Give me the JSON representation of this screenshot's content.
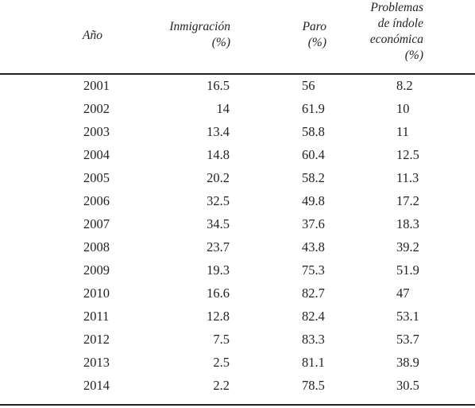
{
  "table": {
    "headers": {
      "year": "Año",
      "inmigracion": [
        "Inmigración",
        "(%)"
      ],
      "paro": [
        "Paro",
        "(%)"
      ],
      "problemas": [
        "Problemas",
        "de índole",
        "económica",
        "(%)"
      ]
    },
    "rows": [
      {
        "year": "2001",
        "inmigracion": "16.5",
        "paro": "56",
        "problemas": "8.2"
      },
      {
        "year": "2002",
        "inmigracion": "14",
        "paro": "61.9",
        "problemas": "10"
      },
      {
        "year": "2003",
        "inmigracion": "13.4",
        "paro": "58.8",
        "problemas": "11"
      },
      {
        "year": "2004",
        "inmigracion": "14.8",
        "paro": "60.4",
        "problemas": "12.5"
      },
      {
        "year": "2005",
        "inmigracion": "20.2",
        "paro": "58.2",
        "problemas": "11.3"
      },
      {
        "year": "2006",
        "inmigracion": "32.5",
        "paro": "49.8",
        "problemas": "17.2"
      },
      {
        "year": "2007",
        "inmigracion": "34.5",
        "paro": "37.6",
        "problemas": "18.3"
      },
      {
        "year": "2008",
        "inmigracion": "23.7",
        "paro": "43.8",
        "problemas": "39.2"
      },
      {
        "year": "2009",
        "inmigracion": "19.3",
        "paro": "75.3",
        "problemas": "51.9"
      },
      {
        "year": "2010",
        "inmigracion": "16.6",
        "paro": "82.7",
        "problemas": "47"
      },
      {
        "year": "2011",
        "inmigracion": "12.8",
        "paro": "82.4",
        "problemas": "53.1"
      },
      {
        "year": "2012",
        "inmigracion": "7.5",
        "paro": "83.3",
        "problemas": "53.7"
      },
      {
        "year": "2013",
        "inmigracion": "2.5",
        "paro": "81.1",
        "problemas": "38.9"
      },
      {
        "year": "2014",
        "inmigracion": "2.2",
        "paro": "78.5",
        "problemas": "30.5"
      }
    ]
  }
}
